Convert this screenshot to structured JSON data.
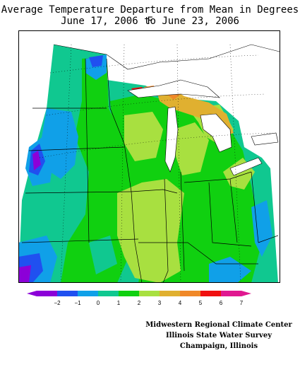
{
  "title": {
    "line1": "Average Temperature Departure from Mean in Degrees F",
    "line2": "June 17, 2006 to June 23, 2006"
  },
  "legend": {
    "ticks": [
      "−2",
      "−1",
      "0",
      "1",
      "2",
      "3",
      "4",
      "5",
      "6",
      "7"
    ],
    "colors": [
      "#8c00d8",
      "#2050f0",
      "#10a0e8",
      "#10c890",
      "#10d010",
      "#a8e040",
      "#e0b030",
      "#f08828",
      "#f01010",
      "#e01890"
    ]
  },
  "credits": {
    "line1": "Midwestern Regional Climate Center",
    "line2": "Illinois State Water Survey",
    "line3": "Champaign, Illinois"
  }
}
